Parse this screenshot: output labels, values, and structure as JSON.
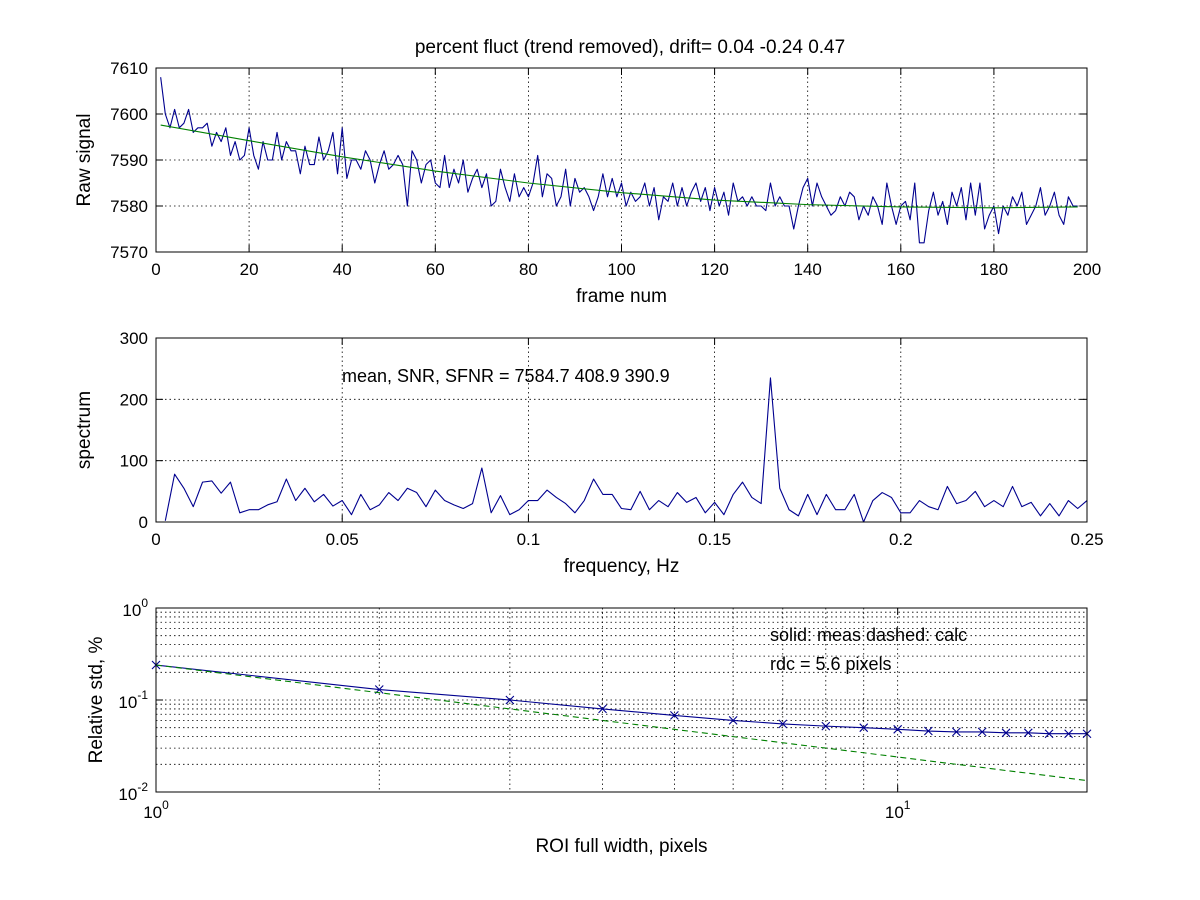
{
  "colors": {
    "measured": "#00008f",
    "fit": "#008000",
    "calc": "#008000",
    "axis": "#000000"
  },
  "chart_data": [
    {
      "type": "line",
      "title": "percent fluct (trend removed), drift=  0.04 -0.24  0.47",
      "xlabel": "frame num",
      "ylabel": "Raw signal",
      "xlim": [
        0,
        200
      ],
      "ylim": [
        7570,
        7610
      ],
      "xticks": [
        0,
        20,
        40,
        60,
        80,
        100,
        120,
        140,
        160,
        180,
        200
      ],
      "yticks": [
        7570,
        7580,
        7590,
        7600,
        7610
      ],
      "grid": true,
      "series": [
        {
          "style": "solid",
          "color": "#00008f",
          "x": [
            1,
            2,
            3,
            4,
            5,
            6,
            7,
            8,
            9,
            10,
            11,
            12,
            13,
            14,
            15,
            16,
            17,
            18,
            19,
            20,
            21,
            22,
            23,
            24,
            25,
            26,
            27,
            28,
            29,
            30,
            31,
            32,
            33,
            34,
            35,
            36,
            37,
            38,
            39,
            40,
            41,
            42,
            43,
            44,
            45,
            46,
            47,
            48,
            49,
            50,
            51,
            52,
            53,
            54,
            55,
            56,
            57,
            58,
            59,
            60,
            61,
            62,
            63,
            64,
            65,
            66,
            67,
            68,
            69,
            70,
            71,
            72,
            73,
            74,
            75,
            76,
            77,
            78,
            79,
            80,
            81,
            82,
            83,
            84,
            85,
            86,
            87,
            88,
            89,
            90,
            91,
            92,
            93,
            94,
            95,
            96,
            97,
            98,
            99,
            100,
            101,
            102,
            103,
            104,
            105,
            106,
            107,
            108,
            109,
            110,
            111,
            112,
            113,
            114,
            115,
            116,
            117,
            118,
            119,
            120,
            121,
            122,
            123,
            124,
            125,
            126,
            127,
            128,
            129,
            130,
            131,
            132,
            133,
            134,
            135,
            136,
            137,
            138,
            139,
            140,
            141,
            142,
            143,
            144,
            145,
            146,
            147,
            148,
            149,
            150,
            151,
            152,
            153,
            154,
            155,
            156,
            157,
            158,
            159,
            160,
            161,
            162,
            163,
            164,
            165,
            166,
            167,
            168,
            169,
            170,
            171,
            172,
            173,
            174,
            175,
            176,
            177,
            178,
            179,
            180,
            181,
            182,
            183,
            184,
            185,
            186,
            187,
            188,
            189,
            190,
            191,
            192,
            193,
            194,
            195,
            196,
            197,
            198
          ],
          "y": [
            7608,
            7600,
            7597,
            7601,
            7597,
            7598,
            7601,
            7596,
            7597,
            7597,
            7598,
            7593,
            7596,
            7594,
            7597,
            7591,
            7594,
            7590,
            7591,
            7597,
            7591,
            7588,
            7594,
            7590,
            7590,
            7596,
            7590,
            7594,
            7592,
            7592,
            7587,
            7593,
            7589,
            7589,
            7595,
            7590,
            7592,
            7596,
            7587,
            7597,
            7586,
            7590,
            7590,
            7588,
            7592,
            7590,
            7585,
            7589,
            7592,
            7588,
            7589,
            7591,
            7589,
            7580,
            7592,
            7590,
            7585,
            7589,
            7590,
            7585,
            7584,
            7591,
            7584,
            7588,
            7585,
            7590,
            7583,
            7586,
            7588,
            7584,
            7587,
            7580,
            7581,
            7588,
            7584,
            7581,
            7587,
            7582,
            7584,
            7582,
            7585,
            7591,
            7582,
            7587,
            7586,
            7580,
            7582,
            7588,
            7580,
            7586,
            7583,
            7584,
            7582,
            7579,
            7582,
            7587,
            7582,
            7586,
            7582,
            7585,
            7580,
            7583,
            7581,
            7582,
            7585,
            7580,
            7584,
            7577,
            7582,
            7581,
            7585,
            7580,
            7584,
            7580,
            7583,
            7585,
            7581,
            7584,
            7579,
            7584,
            7580,
            7583,
            7578,
            7585,
            7581,
            7582,
            7580,
            7582,
            7580,
            7580,
            7579,
            7585,
            7580,
            7582,
            7580,
            7580,
            7575,
            7580,
            7584,
            7586,
            7580,
            7585,
            7582,
            7580,
            7578,
            7579,
            7582,
            7580,
            7583,
            7582,
            7577,
            7580,
            7578,
            7582,
            7580,
            7576,
            7585,
            7580,
            7576,
            7580,
            7581,
            7577,
            7585,
            7572,
            7572,
            7579,
            7583,
            7578,
            7581,
            7576,
            7583,
            7580,
            7584,
            7577,
            7585,
            7578,
            7585,
            7575,
            7578,
            7580,
            7574,
            7580,
            7578,
            7582,
            7580,
            7583,
            7576,
            7578,
            7580,
            7584,
            7578,
            7580,
            7583,
            7578,
            7576,
            7582,
            7580,
            7580
          ]
        },
        {
          "style": "solid",
          "color": "#008000",
          "x": [
            1,
            20,
            40,
            60,
            80,
            100,
            120,
            140,
            160,
            180,
            198
          ],
          "y": [
            7597.6,
            7594.2,
            7590.7,
            7587.6,
            7585.0,
            7582.9,
            7581.3,
            7580.3,
            7579.8,
            7579.6,
            7579.8
          ]
        }
      ]
    },
    {
      "type": "line",
      "title": "",
      "xlabel": "frequency, Hz",
      "ylabel": "spectrum",
      "xlim": [
        0,
        0.25
      ],
      "ylim": [
        0,
        300
      ],
      "xticks": [
        0,
        0.05,
        0.1,
        0.15,
        0.2,
        0.25
      ],
      "yticks": [
        0,
        100,
        200,
        300
      ],
      "grid": true,
      "annotation": "mean, SNR, SFNR = 7584.7  408.9  390.9",
      "series": [
        {
          "style": "solid",
          "color": "#00008f",
          "x": [
            0.0025,
            0.005,
            0.0075,
            0.01,
            0.0125,
            0.015,
            0.0175,
            0.02,
            0.0225,
            0.025,
            0.0275,
            0.03,
            0.0325,
            0.035,
            0.0375,
            0.04,
            0.0425,
            0.045,
            0.0475,
            0.05,
            0.0525,
            0.055,
            0.0575,
            0.06,
            0.0625,
            0.065,
            0.0675,
            0.07,
            0.0725,
            0.075,
            0.0775,
            0.08,
            0.0825,
            0.085,
            0.0875,
            0.09,
            0.0925,
            0.095,
            0.0975,
            0.1,
            0.1025,
            0.105,
            0.1075,
            0.11,
            0.1125,
            0.115,
            0.1175,
            0.12,
            0.1225,
            0.125,
            0.1275,
            0.13,
            0.1325,
            0.135,
            0.1375,
            0.14,
            0.1425,
            0.145,
            0.1475,
            0.15,
            0.1525,
            0.155,
            0.1575,
            0.16,
            0.1625,
            0.165,
            0.1675,
            0.17,
            0.1725,
            0.175,
            0.1775,
            0.18,
            0.1825,
            0.185,
            0.1875,
            0.19,
            0.1925,
            0.195,
            0.1975,
            0.2,
            0.2025,
            0.205,
            0.2075,
            0.21,
            0.2125,
            0.215,
            0.2175,
            0.22,
            0.2225,
            0.225,
            0.2275,
            0.23,
            0.2325,
            0.235,
            0.2375,
            0.24,
            0.2425,
            0.245,
            0.2475,
            0.25
          ],
          "y": [
            2,
            78,
            55,
            25,
            65,
            67,
            47,
            65,
            15,
            20,
            20,
            28,
            33,
            70,
            35,
            55,
            33,
            45,
            26,
            35,
            12,
            45,
            20,
            28,
            48,
            35,
            55,
            48,
            25,
            52,
            35,
            28,
            22,
            30,
            88,
            15,
            43,
            12,
            20,
            35,
            35,
            52,
            40,
            30,
            15,
            35,
            70,
            45,
            45,
            22,
            20,
            50,
            20,
            35,
            25,
            48,
            32,
            40,
            15,
            32,
            12,
            45,
            65,
            40,
            30,
            235,
            55,
            20,
            10,
            45,
            12,
            45,
            20,
            20,
            45,
            0,
            35,
            48,
            40,
            15,
            15,
            35,
            25,
            20,
            58,
            30,
            35,
            50,
            25,
            35,
            25,
            58,
            25,
            32,
            10,
            30,
            10,
            35,
            22,
            35
          ]
        }
      ]
    },
    {
      "type": "line",
      "title": "",
      "xlabel": "ROI full width, pixels",
      "ylabel": "Relative std, %",
      "xscale": "log",
      "yscale": "log",
      "xlim": [
        1,
        18
      ],
      "ylim": [
        0.01,
        1
      ],
      "xticks": [
        1,
        10
      ],
      "xtick_labels": [
        {
          "base": "10",
          "exp": "0"
        },
        {
          "base": "10",
          "exp": "1"
        }
      ],
      "yticks": [
        0.01,
        0.1,
        1
      ],
      "ytick_labels": [
        {
          "base": "10",
          "exp": "-2"
        },
        {
          "base": "10",
          "exp": "-1"
        },
        {
          "base": "10",
          "exp": "0"
        }
      ],
      "grid": true,
      "annotations": [
        "solid: meas   dashed: calc",
        "rdc = 5.6 pixels"
      ],
      "series": [
        {
          "style": "solid",
          "marker": "x",
          "color": "#00008f",
          "x": [
            1,
            2,
            3,
            4,
            5,
            6,
            7,
            8,
            9,
            10,
            11,
            12,
            13,
            14,
            15,
            16,
            17,
            18
          ],
          "y": [
            0.24,
            0.13,
            0.1,
            0.08,
            0.068,
            0.06,
            0.055,
            0.052,
            0.05,
            0.048,
            0.046,
            0.045,
            0.045,
            0.044,
            0.044,
            0.043,
            0.043,
            0.043
          ]
        },
        {
          "style": "dashed",
          "color": "#008000",
          "x": [
            1,
            2,
            3,
            4,
            5,
            6,
            7,
            8,
            9,
            10,
            11,
            12,
            13,
            14,
            15,
            16,
            17,
            18
          ],
          "y": [
            0.24,
            0.12,
            0.08,
            0.06,
            0.048,
            0.04,
            0.0343,
            0.03,
            0.0267,
            0.024,
            0.0218,
            0.02,
            0.0185,
            0.0171,
            0.016,
            0.015,
            0.0141,
            0.0133
          ]
        }
      ]
    }
  ]
}
